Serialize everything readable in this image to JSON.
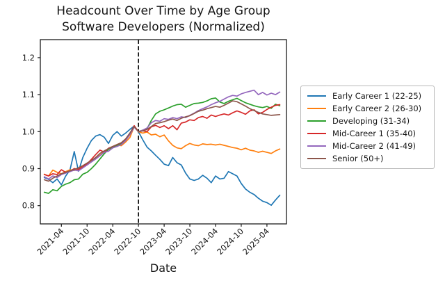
{
  "figure": {
    "title_line1": "Headcount Over Time by Age Group",
    "title_line2": "Software Developers (Normalized)",
    "xlabel": "Date"
  },
  "chart_data": {
    "type": "line",
    "title": "Headcount Over Time by Age Group\nSoftware Developers (Normalized)",
    "xlabel": "Date",
    "ylabel": "",
    "grid": false,
    "legend_position": "right",
    "ylim": [
      0.75,
      1.25
    ],
    "y_tick_labels": [
      "0.8",
      "0.9",
      "1.0",
      "1.1",
      "1.2"
    ],
    "x_tick_labels": [
      "2021-04",
      "2021-10",
      "2022-04",
      "2022-10",
      "2023-04",
      "2023-10",
      "2024-04",
      "2024-10",
      "2025-04"
    ],
    "normalization_vline_date": "2022-10",
    "vline_style": "dashed-black",
    "x_monthly_dates": [
      "2020-12",
      "2021-01",
      "2021-02",
      "2021-03",
      "2021-04",
      "2021-05",
      "2021-06",
      "2021-07",
      "2021-08",
      "2021-09",
      "2021-10",
      "2021-11",
      "2021-12",
      "2022-01",
      "2022-02",
      "2022-03",
      "2022-04",
      "2022-05",
      "2022-06",
      "2022-07",
      "2022-08",
      "2022-09",
      "2022-10",
      "2022-11",
      "2022-12",
      "2023-01",
      "2023-02",
      "2023-03",
      "2023-04",
      "2023-05",
      "2023-06",
      "2023-07",
      "2023-08",
      "2023-09",
      "2023-10",
      "2023-11",
      "2023-12",
      "2024-01",
      "2024-02",
      "2024-03",
      "2024-04",
      "2024-05",
      "2024-06",
      "2024-07",
      "2024-08",
      "2024-09",
      "2024-10",
      "2024-11",
      "2024-12",
      "2025-01",
      "2025-02",
      "2025-03",
      "2025-04",
      "2025-05",
      "2025-06",
      "2025-07"
    ],
    "series": [
      {
        "name": "Early Career 1 (22-25)",
        "color": "#1f77b4",
        "values": [
          0.876,
          0.871,
          0.862,
          0.872,
          0.856,
          0.88,
          0.896,
          0.946,
          0.893,
          0.93,
          0.955,
          0.976,
          0.988,
          0.992,
          0.985,
          0.968,
          0.99,
          1.0,
          0.988,
          0.996,
          1.006,
          1.015,
          1.0,
          0.978,
          0.958,
          0.948,
          0.936,
          0.925,
          0.912,
          0.908,
          0.93,
          0.916,
          0.91,
          0.888,
          0.872,
          0.868,
          0.872,
          0.882,
          0.874,
          0.862,
          0.88,
          0.872,
          0.874,
          0.892,
          0.886,
          0.88,
          0.86,
          0.845,
          0.836,
          0.83,
          0.82,
          0.812,
          0.808,
          0.801,
          0.815,
          0.828
        ]
      },
      {
        "name": "Early Career 2 (26-30)",
        "color": "#ff7f0e",
        "values": [
          0.885,
          0.88,
          0.896,
          0.89,
          0.886,
          0.892,
          0.897,
          0.895,
          0.902,
          0.906,
          0.91,
          0.92,
          0.928,
          0.936,
          0.946,
          0.952,
          0.958,
          0.964,
          0.962,
          0.972,
          0.984,
          1.014,
          1.0,
          0.996,
          0.999,
          0.991,
          0.993,
          0.986,
          0.991,
          0.975,
          0.963,
          0.956,
          0.954,
          0.962,
          0.968,
          0.964,
          0.962,
          0.967,
          0.965,
          0.966,
          0.964,
          0.966,
          0.963,
          0.96,
          0.957,
          0.955,
          0.951,
          0.955,
          0.95,
          0.948,
          0.944,
          0.947,
          0.944,
          0.941,
          0.948,
          0.953
        ]
      },
      {
        "name": "Developing (31-34)",
        "color": "#2ca02c",
        "values": [
          0.836,
          0.833,
          0.843,
          0.84,
          0.852,
          0.858,
          0.862,
          0.87,
          0.872,
          0.885,
          0.89,
          0.9,
          0.912,
          0.926,
          0.94,
          0.952,
          0.958,
          0.963,
          0.968,
          0.979,
          0.993,
          1.013,
          1.0,
          1.004,
          1.008,
          1.03,
          1.048,
          1.055,
          1.059,
          1.064,
          1.069,
          1.073,
          1.074,
          1.066,
          1.071,
          1.076,
          1.077,
          1.079,
          1.083,
          1.089,
          1.091,
          1.08,
          1.076,
          1.082,
          1.086,
          1.09,
          1.084,
          1.078,
          1.074,
          1.07,
          1.067,
          1.065,
          1.068,
          1.063,
          1.074,
          1.07
        ]
      },
      {
        "name": "Mid-Career 1 (35-40)",
        "color": "#d62728",
        "values": [
          0.884,
          0.88,
          0.886,
          0.884,
          0.897,
          0.89,
          0.893,
          0.9,
          0.898,
          0.904,
          0.913,
          0.925,
          0.938,
          0.95,
          0.945,
          0.955,
          0.96,
          0.965,
          0.97,
          0.98,
          0.995,
          1.016,
          1.0,
          1.002,
          1.0,
          1.013,
          1.017,
          1.011,
          1.016,
          1.008,
          1.016,
          1.005,
          1.023,
          1.026,
          1.032,
          1.03,
          1.038,
          1.041,
          1.036,
          1.045,
          1.041,
          1.045,
          1.048,
          1.045,
          1.051,
          1.056,
          1.052,
          1.047,
          1.056,
          1.059,
          1.048,
          1.052,
          1.06,
          1.066,
          1.071,
          1.073
        ]
      },
      {
        "name": "Mid-Career 2 (41-49)",
        "color": "#9467bd",
        "values": [
          0.878,
          0.872,
          0.88,
          0.876,
          0.884,
          0.888,
          0.892,
          0.896,
          0.894,
          0.902,
          0.91,
          0.918,
          0.926,
          0.935,
          0.944,
          0.947,
          0.956,
          0.96,
          0.965,
          0.976,
          0.992,
          1.012,
          1.0,
          1.004,
          1.01,
          1.024,
          1.03,
          1.028,
          1.035,
          1.033,
          1.038,
          1.035,
          1.04,
          1.038,
          1.044,
          1.05,
          1.057,
          1.062,
          1.067,
          1.073,
          1.078,
          1.082,
          1.088,
          1.094,
          1.098,
          1.096,
          1.102,
          1.106,
          1.109,
          1.112,
          1.1,
          1.106,
          1.099,
          1.104,
          1.1,
          1.107
        ]
      },
      {
        "name": "Senior (50+)",
        "color": "#8c564b",
        "values": [
          0.87,
          0.866,
          0.874,
          0.88,
          0.886,
          0.89,
          0.894,
          0.898,
          0.902,
          0.908,
          0.915,
          0.922,
          0.93,
          0.941,
          0.948,
          0.954,
          0.96,
          0.965,
          0.97,
          0.98,
          0.996,
          1.014,
          1.0,
          1.002,
          1.006,
          1.014,
          1.022,
          1.024,
          1.027,
          1.031,
          1.034,
          1.03,
          1.036,
          1.04,
          1.043,
          1.049,
          1.055,
          1.058,
          1.062,
          1.065,
          1.068,
          1.066,
          1.071,
          1.077,
          1.083,
          1.081,
          1.075,
          1.069,
          1.062,
          1.057,
          1.052,
          1.048,
          1.046,
          1.044,
          1.045,
          1.046
        ]
      }
    ]
  }
}
